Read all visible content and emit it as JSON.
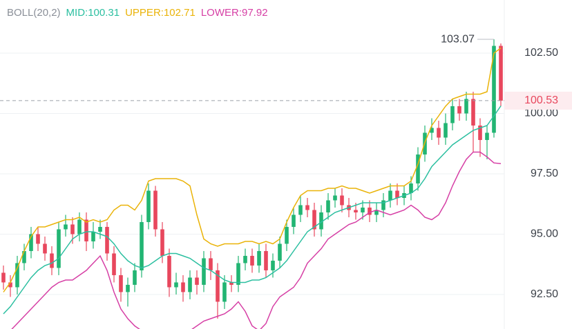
{
  "chart_data": {
    "type": "candlestick",
    "indicator": "BOLL(20,2)",
    "ylim": [
      91.07,
      104.7
    ],
    "yticks": [
      {
        "value": 102.5,
        "label": "102.50"
      },
      {
        "value": 100,
        "label": "100.00"
      },
      {
        "value": 97.5,
        "label": "97.50"
      },
      {
        "value": 95,
        "label": "95.00"
      },
      {
        "value": 92.5,
        "label": "92.50"
      }
    ],
    "grid": true,
    "up_color": "#22b573",
    "down_color": "#e8475d",
    "last_price": 100.53,
    "open": [
      93.4,
      93.0,
      92.8,
      93.8,
      94.3,
      95.0,
      94.6,
      94.2,
      93.6,
      95.2,
      95.4,
      95.0,
      95.6,
      94.7,
      95.1,
      95.3,
      94.2,
      93.3,
      92.6,
      92.9,
      93.5,
      95.5,
      96.8,
      95.2,
      94.1,
      92.8,
      93.0,
      92.6,
      93.2,
      92.9,
      94.0,
      93.5,
      92.2,
      93.0,
      92.9,
      93.8,
      94.1,
      93.7,
      94.3,
      93.5,
      93.9,
      94.6,
      95.3,
      95.8,
      96.2,
      96.0,
      95.2,
      95.9,
      96.4,
      96.6,
      96.2,
      96.0,
      95.9,
      96.1,
      95.8,
      96.0,
      96.4,
      96.8,
      96.5,
      96.7,
      97.1,
      98.3,
      99.2,
      99.4,
      99.0,
      99.6,
      100.3,
      100.0,
      100.6,
      99.5,
      98.9,
      99.2,
      102.8
    ],
    "high": [
      93.7,
      93.3,
      94.1,
      94.6,
      95.3,
      95.3,
      94.9,
      94.5,
      95.5,
      95.8,
      95.7,
      95.9,
      95.9,
      95.5,
      95.6,
      95.5,
      94.5,
      93.6,
      93.2,
      93.8,
      95.8,
      97.1,
      97.0,
      95.5,
      94.4,
      93.4,
      93.3,
      93.5,
      93.5,
      94.3,
      94.3,
      93.8,
      93.3,
      93.3,
      94.1,
      94.4,
      94.4,
      94.6,
      94.6,
      94.2,
      94.9,
      95.6,
      96.1,
      96.6,
      96.5,
      96.3,
      96.2,
      96.7,
      96.9,
      96.9,
      96.5,
      96.3,
      96.4,
      96.4,
      96.3,
      96.7,
      97.1,
      97.1,
      97.0,
      97.4,
      98.6,
      99.5,
      99.8,
      99.7,
      100.0,
      100.6,
      100.6,
      100.9,
      100.9,
      99.8,
      99.5,
      103.07,
      102.9
    ],
    "low": [
      92.7,
      92.4,
      92.5,
      93.5,
      94.0,
      94.3,
      93.9,
      93.3,
      93.3,
      94.9,
      94.6,
      94.7,
      94.3,
      94.4,
      94.8,
      93.9,
      93.0,
      92.2,
      92.0,
      92.6,
      93.2,
      95.2,
      94.9,
      93.8,
      92.4,
      92.5,
      92.2,
      92.3,
      92.5,
      92.6,
      93.1,
      91.5,
      91.9,
      92.6,
      92.6,
      93.5,
      93.4,
      93.4,
      93.2,
      93.2,
      93.6,
      94.3,
      95.0,
      95.5,
      95.7,
      94.9,
      94.9,
      95.6,
      96.1,
      95.9,
      95.7,
      95.6,
      95.6,
      95.5,
      95.5,
      95.7,
      96.1,
      96.2,
      96.2,
      96.4,
      96.8,
      98.0,
      98.9,
      98.7,
      98.7,
      99.3,
      99.7,
      99.7,
      98.4,
      98.2,
      98.1,
      99.0,
      100.3
    ],
    "close": [
      93.0,
      92.8,
      93.8,
      94.3,
      95.0,
      94.6,
      94.2,
      93.6,
      95.2,
      95.4,
      95.0,
      95.6,
      94.7,
      95.1,
      95.3,
      94.2,
      93.3,
      92.6,
      92.9,
      93.5,
      95.5,
      96.8,
      95.2,
      94.1,
      92.8,
      93.0,
      92.6,
      93.2,
      92.9,
      94.0,
      93.5,
      92.2,
      93.0,
      92.9,
      93.8,
      94.1,
      93.7,
      94.3,
      93.5,
      93.9,
      94.6,
      95.3,
      95.8,
      96.2,
      96.0,
      95.2,
      95.9,
      96.4,
      96.6,
      96.2,
      96.0,
      95.9,
      96.1,
      95.8,
      96.0,
      96.4,
      96.8,
      96.5,
      96.7,
      97.1,
      98.3,
      99.2,
      99.4,
      99.0,
      99.6,
      100.3,
      100.0,
      100.6,
      99.5,
      98.9,
      99.2,
      102.8,
      100.53
    ],
    "series": [
      {
        "name": "MID:100.31",
        "color": "#2bbfa0",
        "values": [
          91.7,
          92.0,
          92.4,
          92.8,
          93.2,
          93.5,
          93.7,
          93.8,
          94.0,
          94.4,
          94.8,
          95.0,
          95.1,
          95.1,
          95.0,
          94.9,
          94.6,
          94.2,
          93.9,
          93.7,
          93.6,
          93.7,
          93.9,
          94.1,
          94.2,
          94.2,
          94.1,
          94.0,
          93.8,
          93.6,
          93.5,
          93.3,
          93.1,
          93.0,
          93.0,
          93.0,
          93.1,
          93.1,
          93.2,
          93.4,
          93.6,
          93.9,
          94.3,
          94.7,
          95.1,
          95.3,
          95.5,
          95.7,
          95.9,
          96.0,
          96.1,
          96.2,
          96.3,
          96.3,
          96.3,
          96.3,
          96.4,
          96.5,
          96.6,
          96.7,
          96.9,
          97.3,
          97.8,
          98.1,
          98.4,
          98.7,
          98.9,
          99.1,
          99.3,
          99.4,
          99.5,
          99.9,
          100.31
        ]
      },
      {
        "name": "UPPER:102.71",
        "color": "#eab308",
        "values": [
          92.6,
          93.0,
          93.6,
          94.3,
          94.9,
          95.3,
          95.3,
          95.4,
          95.5,
          95.6,
          95.6,
          95.7,
          95.5,
          95.6,
          95.5,
          95.6,
          96.0,
          96.2,
          96.2,
          96.0,
          96.4,
          97.2,
          97.3,
          97.3,
          97.3,
          97.3,
          97.2,
          97.0,
          95.8,
          94.8,
          94.6,
          94.5,
          94.6,
          94.6,
          94.6,
          94.7,
          94.7,
          94.6,
          94.7,
          94.6,
          94.8,
          95.5,
          96.1,
          96.6,
          96.8,
          96.8,
          96.8,
          96.9,
          96.9,
          97.0,
          96.9,
          96.9,
          96.8,
          96.7,
          96.8,
          96.9,
          97.0,
          97.0,
          97.0,
          97.2,
          97.9,
          98.8,
          99.5,
          99.9,
          100.3,
          100.6,
          100.7,
          100.8,
          100.8,
          100.8,
          100.9,
          102.5,
          102.71
        ]
      },
      {
        "name": "LOWER:97.92",
        "color": "#d63fa5",
        "values": [
          90.8,
          91.0,
          91.3,
          91.6,
          91.9,
          92.2,
          92.5,
          92.8,
          93.0,
          93.1,
          93.1,
          93.3,
          93.5,
          93.8,
          94.1,
          93.5,
          92.6,
          91.9,
          91.5,
          91.2,
          91.0,
          90.6,
          90.5,
          90.6,
          90.7,
          90.8,
          90.9,
          91.0,
          91.2,
          91.4,
          91.5,
          91.6,
          91.7,
          91.9,
          92.2,
          91.8,
          91.2,
          91.0,
          91.3,
          92.0,
          92.4,
          92.6,
          92.8,
          93.2,
          93.8,
          94.1,
          94.4,
          94.8,
          95.0,
          95.2,
          95.4,
          95.5,
          95.7,
          95.9,
          96.0,
          95.9,
          95.8,
          95.9,
          96.0,
          96.2,
          96.0,
          95.7,
          95.6,
          95.8,
          96.3,
          97.0,
          97.6,
          98.1,
          98.4,
          98.4,
          98.2,
          97.95,
          97.92
        ]
      }
    ]
  }
}
